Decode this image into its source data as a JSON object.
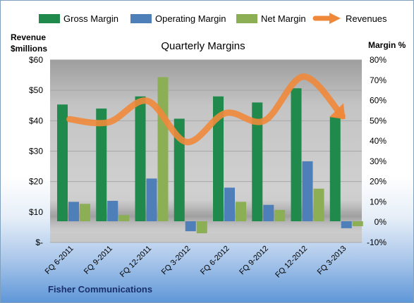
{
  "chart_data": {
    "type": "bar",
    "title": "Quarterly Margins",
    "company": "Fisher Communications",
    "y_left_label": [
      "Revenue",
      "$millions"
    ],
    "y_right_label": "Margin %",
    "categories": [
      "FQ 6-2011",
      "FQ 9-2011",
      "FQ 12-2011",
      "FQ 3-2012",
      "FQ 6-2012",
      "FQ 9-2012",
      "FQ 12-2012",
      "FQ 3-2013"
    ],
    "y_left": {
      "min": 0,
      "max": 60,
      "step": 10,
      "tick_labels": [
        "$-",
        "$10",
        "$20",
        "$30",
        "$40",
        "$50",
        "$60"
      ]
    },
    "y_right": {
      "min": -10,
      "max": 80,
      "step": 10,
      "tick_labels": [
        "-10%",
        "0%",
        "10%",
        "20%",
        "30%",
        "40%",
        "50%",
        "60%",
        "70%",
        "80%"
      ]
    },
    "grid": true,
    "legend_position": "top",
    "series": [
      {
        "name": "Gross Margin",
        "axis": "right",
        "kind": "bar",
        "color": "#1f8a4c",
        "values": [
          58,
          56,
          62,
          51,
          62,
          59,
          66,
          52
        ]
      },
      {
        "name": "Operating Margin",
        "axis": "right",
        "kind": "bar",
        "color": "#4f7fb8",
        "values": [
          10,
          10.5,
          21.5,
          -4.5,
          17,
          8.5,
          30,
          -3
        ]
      },
      {
        "name": "Net Margin",
        "axis": "right",
        "kind": "bar",
        "color": "#8caf55",
        "values": [
          9,
          3.5,
          71.5,
          -5.5,
          10,
          6,
          16.5,
          -2
        ]
      },
      {
        "name": "Revenues",
        "axis": "left",
        "kind": "line",
        "color": "#f0883a",
        "values": [
          40.5,
          39.5,
          46.5,
          33,
          42.5,
          40,
          54.5,
          41.5
        ]
      }
    ]
  }
}
